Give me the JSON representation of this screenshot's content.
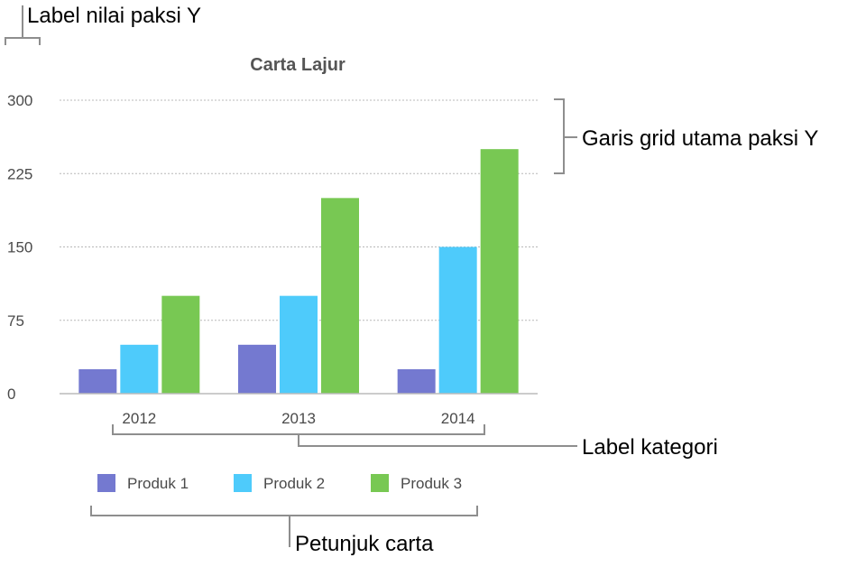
{
  "chart_data": {
    "type": "bar",
    "title": "Carta Lajur",
    "xlabel": "",
    "ylabel": "",
    "categories": [
      "2012",
      "2013",
      "2014"
    ],
    "yticks": [
      "0",
      "75",
      "150",
      "225",
      "300"
    ],
    "ylim": [
      0,
      300
    ],
    "grid": true,
    "legend_position": "bottom",
    "series": [
      {
        "name": "Produk 1",
        "color": "#7479d0",
        "values": [
          25,
          50,
          25
        ]
      },
      {
        "name": "Produk 2",
        "color": "#4ecbfb",
        "values": [
          50,
          100,
          150
        ]
      },
      {
        "name": "Produk 3",
        "color": "#78c853",
        "values": [
          100,
          200,
          250
        ]
      }
    ]
  },
  "callouts": {
    "y_value_label": "Label nilai paksi Y",
    "major_gridlines": "Garis grid utama paksi Y",
    "category_label": "Label kategori",
    "chart_legend": "Petunjuk carta"
  }
}
